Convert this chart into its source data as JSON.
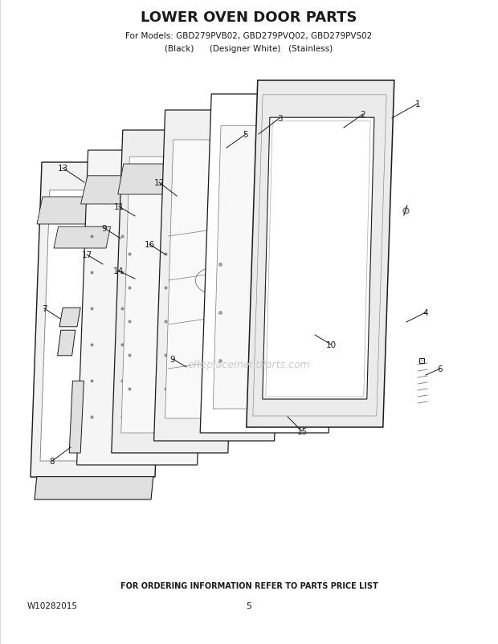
{
  "title": "LOWER OVEN DOOR PARTS",
  "subtitle1": "For Models: GBD279PVB02, GBD279PVQ02, GBD279PVS02",
  "subtitle2": "(Black)      (Designer White)   (Stainless)",
  "footer1": "FOR ORDERING INFORMATION REFER TO PARTS PRICE LIST",
  "footer2": "W10282015",
  "footer3": "5",
  "watermark": "eReplacementParts.com",
  "bg_color": "#ffffff",
  "title_fontsize": 13,
  "subtitle_fontsize": 7.5,
  "footer_fontsize": 7,
  "partnum_fontsize": 7.5
}
